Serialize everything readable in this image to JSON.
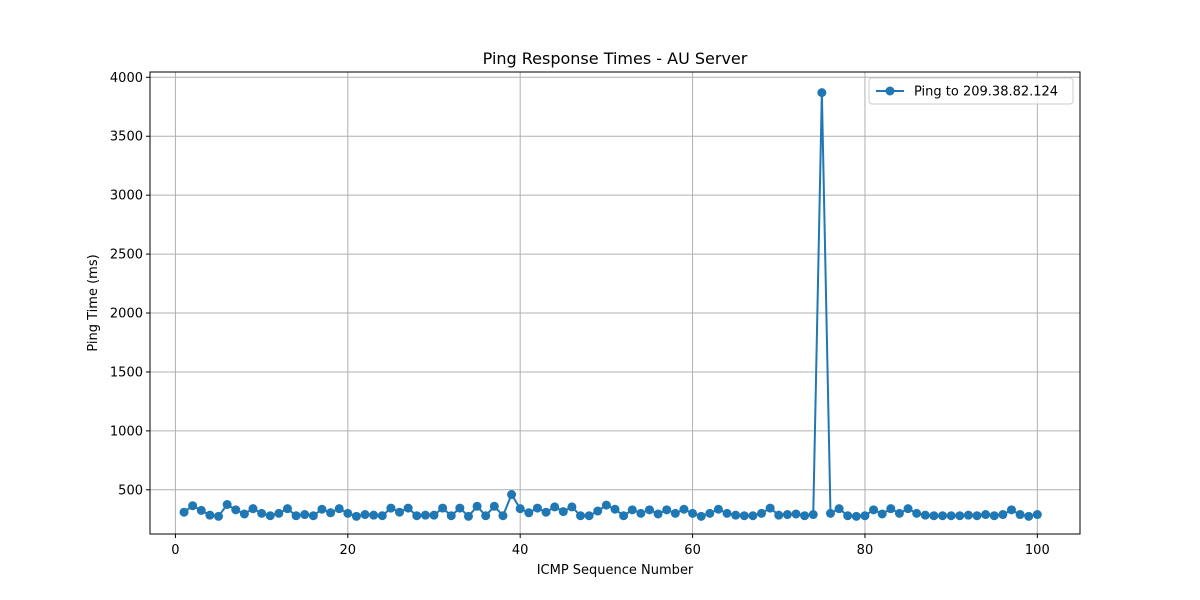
{
  "chart_data": {
    "type": "line",
    "title": "Ping Response Times - AU Server",
    "xlabel": "ICMP Sequence Number",
    "ylabel": "Ping Time (ms)",
    "xlim": [
      -2.95,
      104.95
    ],
    "ylim": [
      125,
      4045
    ],
    "xticks": [
      0,
      20,
      40,
      60,
      80,
      100
    ],
    "yticks": [
      500,
      1000,
      1500,
      2000,
      2500,
      3000,
      3500,
      4000
    ],
    "grid": true,
    "legend_position": "top-right",
    "colors": {
      "series": "#1f77b4",
      "grid": "#b0b0b0"
    },
    "series": [
      {
        "name": "Ping to 209.38.82.124",
        "marker": "circle",
        "x": [
          1,
          2,
          3,
          4,
          5,
          6,
          7,
          8,
          9,
          10,
          11,
          12,
          13,
          14,
          15,
          16,
          17,
          18,
          19,
          20,
          21,
          22,
          23,
          24,
          25,
          26,
          27,
          28,
          29,
          30,
          31,
          32,
          33,
          34,
          35,
          36,
          37,
          38,
          39,
          40,
          41,
          42,
          43,
          44,
          45,
          46,
          47,
          48,
          49,
          50,
          51,
          52,
          53,
          54,
          55,
          56,
          57,
          58,
          59,
          60,
          61,
          62,
          63,
          64,
          65,
          66,
          67,
          68,
          69,
          70,
          71,
          72,
          73,
          74,
          75,
          76,
          77,
          78,
          79,
          80,
          81,
          82,
          83,
          84,
          85,
          86,
          87,
          88,
          89,
          90,
          91,
          92,
          93,
          94,
          95,
          96,
          97,
          98,
          99,
          100
        ],
        "values": [
          310,
          365,
          325,
          285,
          275,
          375,
          330,
          295,
          340,
          300,
          280,
          300,
          340,
          280,
          290,
          280,
          335,
          305,
          340,
          300,
          275,
          290,
          285,
          280,
          345,
          310,
          345,
          280,
          285,
          285,
          345,
          280,
          345,
          275,
          360,
          280,
          360,
          280,
          460,
          340,
          305,
          345,
          310,
          355,
          315,
          355,
          280,
          280,
          320,
          370,
          335,
          280,
          330,
          300,
          330,
          295,
          330,
          300,
          335,
          300,
          275,
          300,
          335,
          300,
          285,
          280,
          280,
          300,
          345,
          285,
          290,
          295,
          280,
          290,
          3870,
          300,
          340,
          280,
          275,
          280,
          330,
          295,
          340,
          300,
          340,
          300,
          285,
          280,
          280,
          280,
          280,
          285,
          280,
          290,
          280,
          290,
          330,
          290,
          275,
          290
        ]
      }
    ]
  }
}
